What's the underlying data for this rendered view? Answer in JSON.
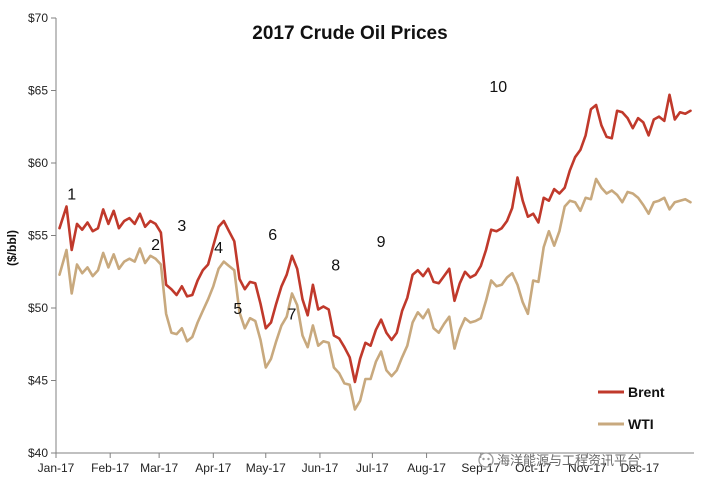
{
  "chart_data": {
    "type": "line",
    "title": "2017 Crude Oil Prices",
    "ylabel": "($/bbl)",
    "xlabel": "",
    "ylim": [
      40,
      70
    ],
    "yticks": [
      40,
      45,
      50,
      55,
      60,
      65,
      70
    ],
    "ytick_labels": [
      "$40",
      "$45",
      "$50",
      "$55",
      "$60",
      "$65",
      "$70"
    ],
    "xlim": [
      0,
      365
    ],
    "xticks": [
      0,
      31,
      59,
      90,
      120,
      151,
      181,
      212,
      243,
      273,
      304,
      334
    ],
    "xtick_labels": [
      "Jan-17",
      "Feb-17",
      "Mar-17",
      "Apr-17",
      "May-17",
      "Jun-17",
      "Jul-17",
      "Aug-17",
      "Sep-17",
      "Oct-17",
      "Nov-17",
      "Dec-17"
    ],
    "legend_position": "bottom-right",
    "colors": {
      "Brent": "#c0392b",
      "WTI": "#c8a97e"
    },
    "series": [
      {
        "name": "Brent",
        "x": [
          2,
          6,
          9,
          12,
          15,
          18,
          21,
          24,
          27,
          30,
          33,
          36,
          39,
          42,
          45,
          48,
          51,
          54,
          57,
          60,
          63,
          66,
          69,
          72,
          75,
          78,
          81,
          84,
          87,
          90,
          93,
          96,
          99,
          102,
          105,
          108,
          111,
          114,
          117,
          120,
          123,
          126,
          129,
          132,
          135,
          138,
          141,
          144,
          147,
          150,
          153,
          156,
          159,
          162,
          165,
          168,
          171,
          174,
          177,
          180,
          183,
          186,
          189,
          192,
          195,
          198,
          201,
          204,
          207,
          210,
          213,
          216,
          219,
          222,
          225,
          228,
          231,
          234,
          237,
          240,
          243,
          246,
          249,
          252,
          255,
          258,
          261,
          264,
          267,
          270,
          273,
          276,
          279,
          282,
          285,
          288,
          291,
          294,
          297,
          300,
          303,
          306,
          309,
          312,
          315,
          318,
          321,
          324,
          327,
          330,
          333,
          336,
          339,
          342,
          345,
          348,
          351,
          354,
          357,
          360,
          363
        ],
        "values": [
          55.5,
          57.0,
          54.0,
          55.8,
          55.4,
          55.9,
          55.3,
          55.5,
          56.8,
          55.8,
          56.7,
          55.5,
          56.0,
          56.2,
          55.8,
          56.5,
          55.6,
          56.0,
          55.8,
          55.2,
          51.6,
          51.3,
          50.9,
          51.5,
          50.8,
          50.9,
          51.9,
          52.6,
          53.0,
          54.3,
          55.6,
          56.0,
          55.3,
          54.6,
          52.0,
          51.3,
          51.8,
          51.7,
          50.3,
          48.6,
          49.0,
          50.3,
          51.5,
          52.3,
          53.6,
          52.7,
          50.6,
          49.5,
          51.6,
          49.9,
          50.1,
          49.9,
          48.1,
          47.9,
          47.3,
          46.6,
          44.9,
          46.5,
          47.6,
          47.4,
          48.5,
          49.2,
          48.3,
          47.8,
          48.3,
          49.8,
          50.7,
          52.3,
          52.6,
          52.2,
          52.7,
          51.8,
          51.7,
          52.2,
          52.7,
          50.5,
          51.7,
          52.5,
          52.1,
          52.3,
          52.9,
          54.0,
          55.4,
          55.3,
          55.5,
          56.0,
          56.9,
          59.0,
          57.4,
          56.3,
          56.5,
          55.9,
          57.6,
          57.4,
          58.2,
          57.9,
          58.3,
          59.5,
          60.4,
          60.9,
          61.9,
          63.7,
          64.0,
          62.6,
          61.8,
          61.7,
          63.6,
          63.5,
          63.1,
          62.4,
          63.1,
          62.8,
          61.9,
          63.0,
          63.2,
          62.9,
          64.7,
          63.0,
          63.5,
          63.4,
          63.6
        ]
      },
      {
        "name": "WTI",
        "x": [
          2,
          6,
          9,
          12,
          15,
          18,
          21,
          24,
          27,
          30,
          33,
          36,
          39,
          42,
          45,
          48,
          51,
          54,
          57,
          60,
          63,
          66,
          69,
          72,
          75,
          78,
          81,
          84,
          87,
          90,
          93,
          96,
          99,
          102,
          105,
          108,
          111,
          114,
          117,
          120,
          123,
          126,
          129,
          132,
          135,
          138,
          141,
          144,
          147,
          150,
          153,
          156,
          159,
          162,
          165,
          168,
          171,
          174,
          177,
          180,
          183,
          186,
          189,
          192,
          195,
          198,
          201,
          204,
          207,
          210,
          213,
          216,
          219,
          222,
          225,
          228,
          231,
          234,
          237,
          240,
          243,
          246,
          249,
          252,
          255,
          258,
          261,
          264,
          267,
          270,
          273,
          276,
          279,
          282,
          285,
          288,
          291,
          294,
          297,
          300,
          303,
          306,
          309,
          312,
          315,
          318,
          321,
          324,
          327,
          330,
          333,
          336,
          339,
          342,
          345,
          348,
          351,
          354,
          357,
          360,
          363
        ],
        "values": [
          52.3,
          54.0,
          51.0,
          53.0,
          52.4,
          52.8,
          52.2,
          52.6,
          53.8,
          52.8,
          53.7,
          52.7,
          53.2,
          53.4,
          53.2,
          54.1,
          53.1,
          53.6,
          53.4,
          53.0,
          49.6,
          48.3,
          48.2,
          48.6,
          47.7,
          48.0,
          49.0,
          49.8,
          50.6,
          51.5,
          52.7,
          53.2,
          52.9,
          52.6,
          49.7,
          48.6,
          49.3,
          49.1,
          47.8,
          45.9,
          46.5,
          47.7,
          48.8,
          49.4,
          51.0,
          50.2,
          48.1,
          47.3,
          48.8,
          47.4,
          47.7,
          47.6,
          45.9,
          45.5,
          44.8,
          44.7,
          43.0,
          43.6,
          45.1,
          45.1,
          46.3,
          47.0,
          45.7,
          45.3,
          45.7,
          46.6,
          47.4,
          49.0,
          49.7,
          49.3,
          49.9,
          48.6,
          48.3,
          48.9,
          49.4,
          47.2,
          48.5,
          49.3,
          49.0,
          49.1,
          49.3,
          50.5,
          51.9,
          51.5,
          51.6,
          52.1,
          52.4,
          51.6,
          50.4,
          49.6,
          51.9,
          51.8,
          54.2,
          55.3,
          54.3,
          55.3,
          57.0,
          57.4,
          57.3,
          56.7,
          57.6,
          57.5,
          58.9,
          58.3,
          57.9,
          58.1,
          57.8,
          57.3,
          58.0,
          57.9,
          57.6,
          57.1,
          56.5,
          57.3,
          57.4,
          57.6,
          56.8,
          57.3,
          57.4,
          57.5,
          57.3
        ]
      }
    ],
    "annotations": [
      {
        "label": "1",
        "x": 9,
        "y": 57.5
      },
      {
        "label": "2",
        "x": 57,
        "y": 54.0
      },
      {
        "label": "3",
        "x": 72,
        "y": 55.3
      },
      {
        "label": "4",
        "x": 93,
        "y": 53.8
      },
      {
        "label": "5",
        "x": 104,
        "y": 49.6
      },
      {
        "label": "6",
        "x": 124,
        "y": 54.7
      },
      {
        "label": "7",
        "x": 135,
        "y": 49.2
      },
      {
        "label": "8",
        "x": 160,
        "y": 52.6
      },
      {
        "label": "9",
        "x": 186,
        "y": 54.2
      },
      {
        "label": "10",
        "x": 253,
        "y": 64.9
      }
    ]
  },
  "watermark": {
    "text": "海洋能源与工程资讯平台"
  }
}
